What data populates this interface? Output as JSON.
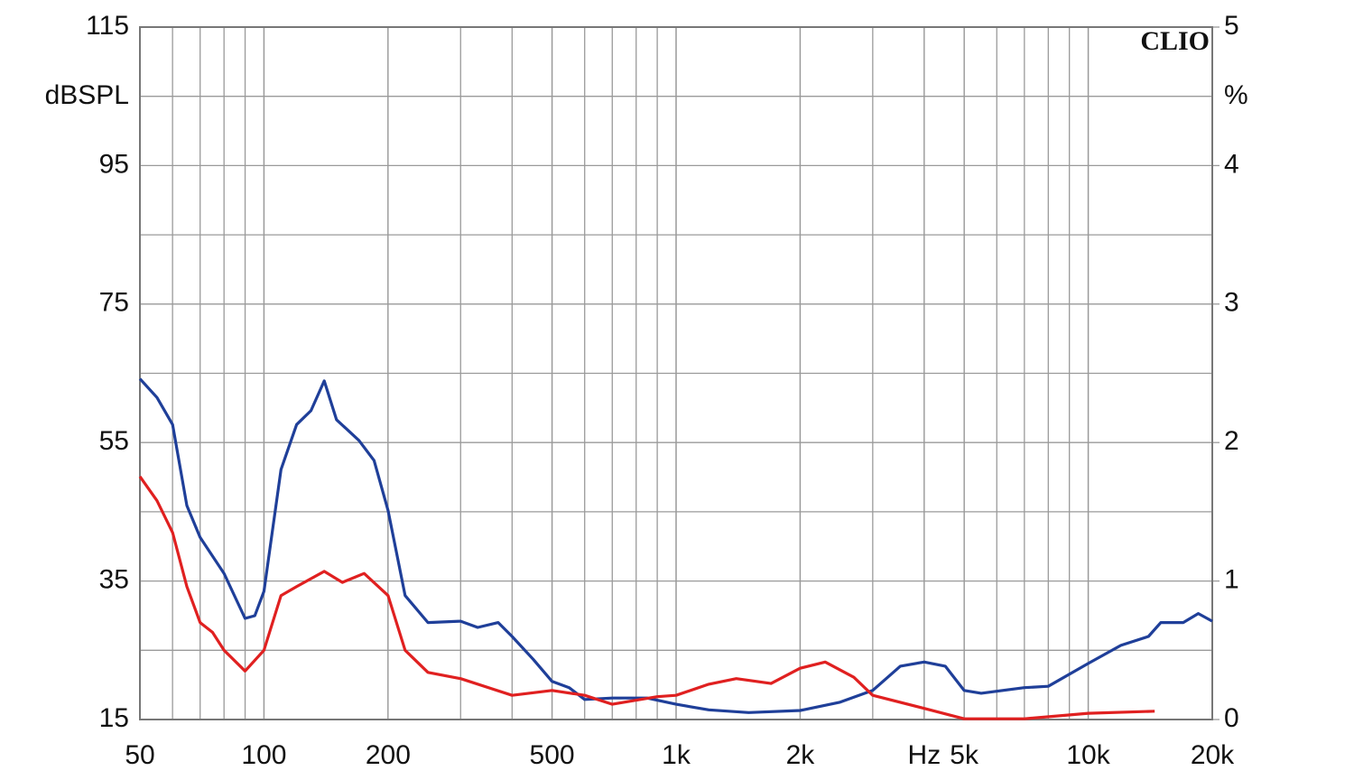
{
  "chart_data": {
    "type": "line",
    "brand": "CLIO",
    "ylabel": "dBSPL",
    "y2label": "%",
    "xscale": "log",
    "grid": true,
    "xlim": [
      50,
      20000
    ],
    "xticks": [
      50,
      100,
      200,
      500,
      {
        "value": 1000,
        "label": "1k"
      },
      {
        "value": 2000,
        "label": "2k"
      },
      {
        "value": 4000,
        "label": "Hz"
      },
      {
        "value": 5000,
        "label": "5k"
      },
      {
        "value": 10000,
        "label": "10k"
      },
      {
        "value": 20000,
        "label": "20k"
      }
    ],
    "ylim": [
      15,
      115
    ],
    "yticks": [
      15,
      35,
      55,
      75,
      95,
      115
    ],
    "y2lim": [
      0,
      5
    ],
    "y2ticks": [
      0,
      1,
      2,
      3,
      4,
      5
    ],
    "series": [
      {
        "color": "#1f3f99",
        "x": [
          50,
          55,
          60,
          65,
          70,
          80,
          90,
          95,
          100,
          110,
          120,
          130,
          140,
          150,
          170,
          185,
          200,
          220,
          250,
          300,
          330,
          370,
          400,
          450,
          500,
          550,
          600,
          700,
          850,
          1000,
          1200,
          1500,
          2000,
          2500,
          3000,
          3500,
          4000,
          4500,
          5000,
          5500,
          7000,
          8000,
          10000,
          12000,
          14000,
          15000,
          17000,
          18500,
          20000
        ],
        "values": [
          64.2,
          61.5,
          57.6,
          45.9,
          41.3,
          36.1,
          29.6,
          30.0,
          33.5,
          51.1,
          57.6,
          59.6,
          63.9,
          58.3,
          55.3,
          52.4,
          45.2,
          32.9,
          29.0,
          29.2,
          28.3,
          29.0,
          27.0,
          23.7,
          20.5,
          19.6,
          17.9,
          18.1,
          18.1,
          17.2,
          16.4,
          16.0,
          16.3,
          17.5,
          19.2,
          22.7,
          23.3,
          22.7,
          19.2,
          18.8,
          19.6,
          19.8,
          23.1,
          25.7,
          27.0,
          29.0,
          29.0,
          30.3,
          29.2
        ]
      },
      {
        "color": "#e02020",
        "x": [
          50,
          55,
          60,
          65,
          70,
          75,
          80,
          90,
          100,
          110,
          120,
          140,
          155,
          175,
          200,
          220,
          250,
          300,
          400,
          500,
          600,
          700,
          900,
          1000,
          1200,
          1400,
          1700,
          2000,
          2300,
          2700,
          3000,
          4000,
          5000,
          7000,
          10000,
          14500
        ],
        "values": [
          50.1,
          46.6,
          42.0,
          34.2,
          29.0,
          27.6,
          25.0,
          22.0,
          25.0,
          32.9,
          34.2,
          36.4,
          34.8,
          36.1,
          32.9,
          25.0,
          21.8,
          20.9,
          18.5,
          19.2,
          18.5,
          17.2,
          18.3,
          18.5,
          20.1,
          20.9,
          20.2,
          22.4,
          23.3,
          21.1,
          18.5,
          16.6,
          15.1,
          15.1,
          15.9,
          16.2
        ]
      }
    ]
  }
}
